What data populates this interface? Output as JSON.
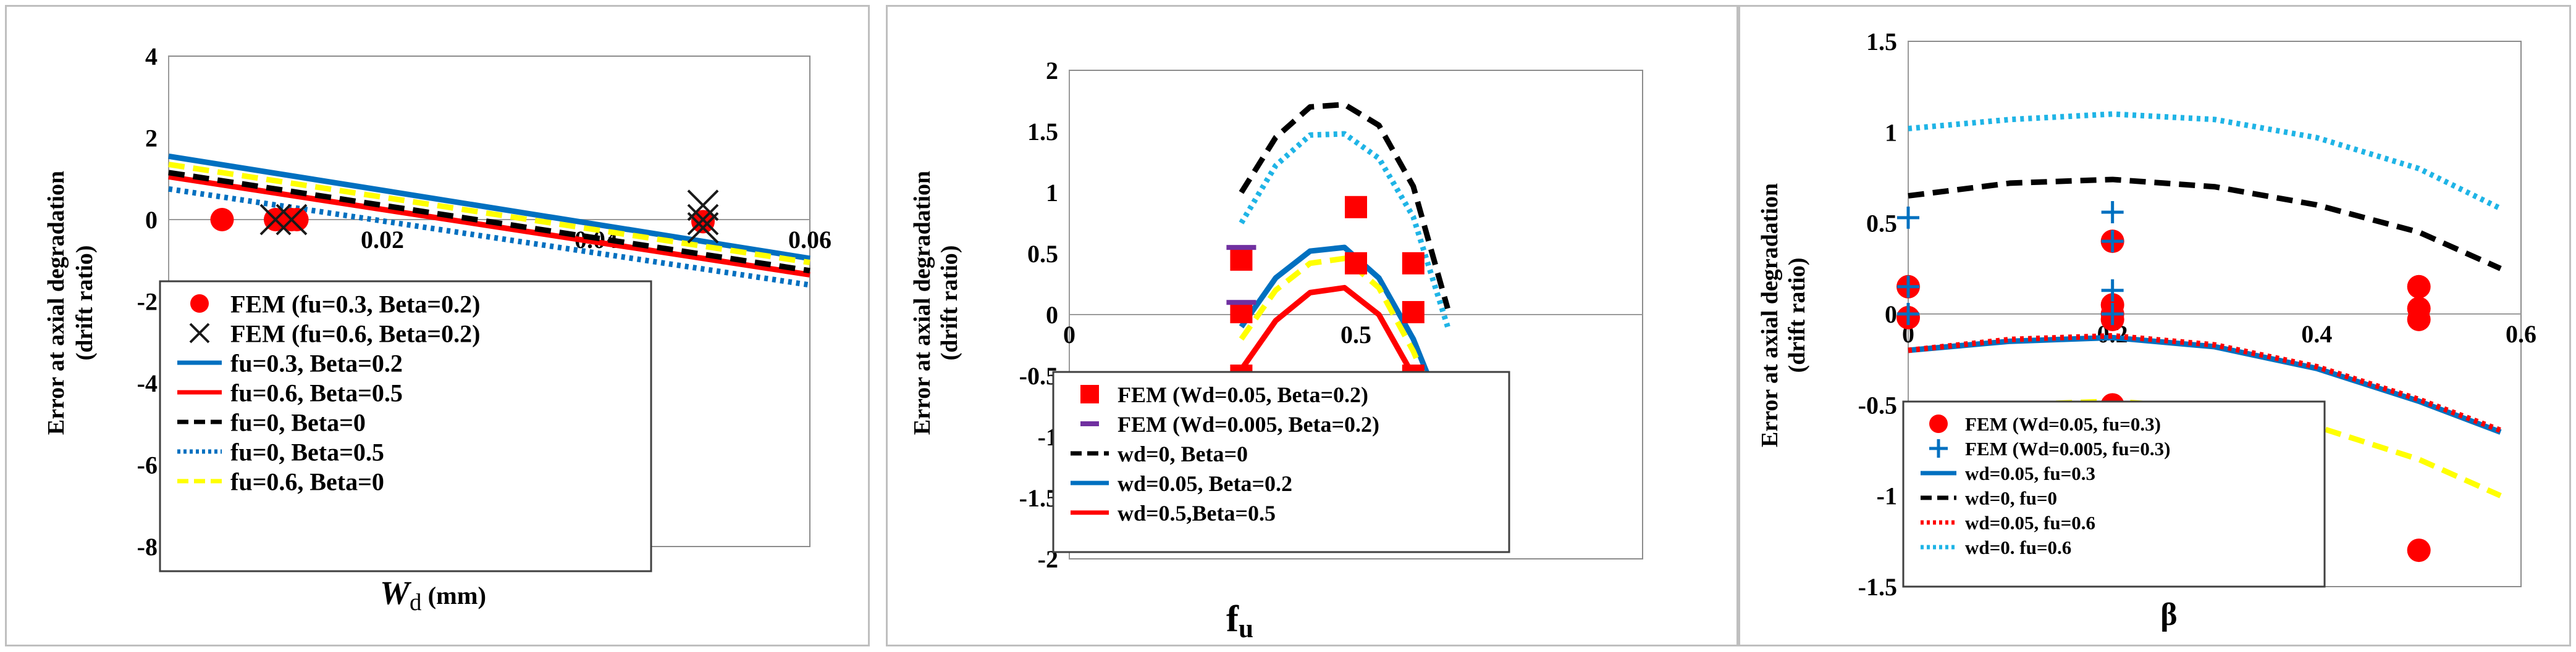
{
  "chart_data": [
    {
      "type": "line",
      "title": "",
      "xlabel": "W",
      "xlabel_sub": "d",
      "xlabel_unit": " (mm)",
      "ylabel": [
        "Error at axial degradation",
        "(drift ratio)"
      ],
      "xlim": [
        0,
        0.06
      ],
      "ylim": [
        -8,
        4
      ],
      "xticks": [
        "0.02",
        "0.04",
        "0.06"
      ],
      "yticks": [
        "4",
        "2",
        "0",
        "-2",
        "-4",
        "-6",
        "-8"
      ],
      "grid": false,
      "legend_position": "lower-left",
      "series": [
        {
          "name": "FEM (fu=0.3, Beta=0.2)",
          "kind": "scatter",
          "marker": "circle",
          "color": "#ff0000",
          "x": [
            0.005,
            0.01,
            0.0115,
            0.012,
            0.05
          ],
          "y": [
            0,
            0,
            0,
            0,
            -0.05
          ]
        },
        {
          "name": "FEM (fu=0.6, Beta=0.2)",
          "kind": "scatter",
          "marker": "x",
          "color": "#1a1a1a",
          "x": [
            0.01,
            0.0115,
            0.05,
            0.05,
            0.05
          ],
          "y": [
            0,
            0,
            0.35,
            0,
            -0.2
          ]
        },
        {
          "name": "fu=0.3, Beta=0.2",
          "kind": "line",
          "dash": "solid",
          "color": "#0070c0",
          "x": [
            0,
            0.06
          ],
          "y": [
            1.55,
            -0.95
          ]
        },
        {
          "name": "fu=0.6, Beta=0.5",
          "kind": "line",
          "dash": "solid",
          "color": "#ff0000",
          "x": [
            0,
            0.06
          ],
          "y": [
            1.05,
            -1.35
          ]
        },
        {
          "name": "fu=0, Beta=0",
          "kind": "line",
          "dash": "dashed",
          "color": "#000000",
          "x": [
            0,
            0.06
          ],
          "y": [
            1.15,
            -1.25
          ]
        },
        {
          "name": "fu=0, Beta=0.5",
          "kind": "line",
          "dash": "dotted",
          "color": "#0070c0",
          "x": [
            0,
            0.06
          ],
          "y": [
            0.75,
            -1.6
          ]
        },
        {
          "name": "fu=0.6, Beta=0",
          "kind": "line",
          "dash": "dashed",
          "color": "#ffff00",
          "x": [
            0,
            0.06
          ],
          "y": [
            1.35,
            -1.05
          ]
        }
      ]
    },
    {
      "type": "line",
      "title": "",
      "xlabel": "f",
      "xlabel_sub": "u",
      "xlabel_unit": "",
      "ylabel": [
        "Error at axial degradation",
        "(drift ratio)"
      ],
      "xlim": [
        0,
        1.0
      ],
      "ylim": [
        -2,
        2
      ],
      "xticks": [
        "0",
        "0.5"
      ],
      "yticks": [
        "2",
        "1.5",
        "1",
        "0.5",
        "0",
        "-0.5",
        "-1",
        "-1.5",
        "-2"
      ],
      "grid": false,
      "legend_position": "lower-left",
      "series": [
        {
          "name": "FEM (Wd=0.05, Beta=0.2)",
          "kind": "scatter",
          "marker": "square",
          "color": "#ff0000",
          "x": [
            0.3,
            0.3,
            0.3,
            0.5,
            0.5,
            0.6,
            0.6,
            0.6
          ],
          "y": [
            0.45,
            0.02,
            -0.5,
            0.88,
            0.42,
            0.42,
            0.02,
            -0.5
          ]
        },
        {
          "name": "FEM (Wd=0.005, Beta=0.2)",
          "kind": "scatter",
          "marker": "dash",
          "color": "#7030a0",
          "x": [
            0.3,
            0.3
          ],
          "y": [
            0.55,
            0.1
          ]
        },
        {
          "name": "wd=0, Beta=0",
          "kind": "line",
          "dash": "dashed",
          "color": "#000000",
          "x": [
            0.3,
            0.36,
            0.42,
            0.48,
            0.54,
            0.6,
            0.66
          ],
          "y": [
            1.0,
            1.45,
            1.7,
            1.72,
            1.55,
            1.05,
            0.05
          ]
        },
        {
          "name": "",
          "kind": "line",
          "dash": "dotted",
          "color": "#1fb4e6",
          "x": [
            0.3,
            0.36,
            0.42,
            0.48,
            0.54,
            0.6,
            0.66
          ],
          "y": [
            0.75,
            1.22,
            1.47,
            1.48,
            1.28,
            0.8,
            -0.1
          ]
        },
        {
          "name": "wd=0.05, Beta=0.2",
          "kind": "line",
          "dash": "solid",
          "color": "#0070c0",
          "x": [
            0.3,
            0.36,
            0.42,
            0.48,
            0.54,
            0.6,
            0.66,
            0.68
          ],
          "y": [
            -0.1,
            0.3,
            0.52,
            0.55,
            0.3,
            -0.2,
            -0.9,
            -1.1
          ]
        },
        {
          "name": "",
          "kind": "line",
          "dash": "dashed",
          "color": "#ffff00",
          "x": [
            0.3,
            0.36,
            0.42,
            0.48,
            0.54,
            0.6,
            0.66,
            0.68
          ],
          "y": [
            -0.2,
            0.2,
            0.42,
            0.46,
            0.22,
            -0.3,
            -0.95,
            -1.18
          ]
        },
        {
          "name": "wd=0.5,Beta=0.5",
          "kind": "line",
          "dash": "solid",
          "color": "#ff0000",
          "x": [
            0.3,
            0.36,
            0.42,
            0.48,
            0.54,
            0.6,
            0.66,
            0.68
          ],
          "y": [
            -0.45,
            -0.05,
            0.18,
            0.22,
            0.0,
            -0.5,
            -1.2,
            -1.45
          ]
        }
      ]
    },
    {
      "type": "line",
      "title": "",
      "xlabel": "β",
      "xlabel_sub": "",
      "xlabel_unit": "",
      "ylabel": [
        "Error at axial degradation",
        "(drift ratio)"
      ],
      "xlim": [
        0,
        0.6
      ],
      "ylim": [
        -1.5,
        1.5
      ],
      "xticks": [
        "0",
        "0.2",
        "0.4",
        "0.6"
      ],
      "yticks": [
        "1.5",
        "1",
        "0.5",
        "0",
        "-0.5",
        "-1",
        "-1.5"
      ],
      "grid": false,
      "legend_position": "lower-left",
      "series": [
        {
          "name": "FEM (Wd=0.05, fu=0.3)",
          "kind": "scatter",
          "marker": "circle",
          "color": "#ff0000",
          "x": [
            0,
            0,
            0.2,
            0.2,
            0.2,
            0.2,
            0.2,
            0.5,
            0.5,
            0.5,
            0.5
          ],
          "y": [
            0.15,
            -0.02,
            0.4,
            0.05,
            -0.03,
            -0.5,
            0.0,
            0.15,
            0.03,
            -0.03,
            -1.3
          ]
        },
        {
          "name": "FEM (Wd=0.005, fu=0.3)",
          "kind": "scatter",
          "marker": "plus",
          "color": "#0070c0",
          "x": [
            0,
            0,
            0,
            0.2,
            0.2,
            0.2,
            0.2
          ],
          "y": [
            0.53,
            0.15,
            0.0,
            0.56,
            0.4,
            0.13,
            0.0
          ]
        },
        {
          "name": "wd=0.05, fu=0.3",
          "kind": "line",
          "dash": "solid",
          "color": "#0070c0",
          "x": [
            0,
            0.1,
            0.2,
            0.3,
            0.4,
            0.5,
            0.58
          ],
          "y": [
            -0.2,
            -0.15,
            -0.13,
            -0.18,
            -0.3,
            -0.48,
            -0.65
          ]
        },
        {
          "name": "wd=0, fu=0",
          "kind": "line",
          "dash": "dashed",
          "color": "#000000",
          "x": [
            0,
            0.1,
            0.2,
            0.3,
            0.4,
            0.5,
            0.58
          ],
          "y": [
            0.65,
            0.72,
            0.74,
            0.7,
            0.6,
            0.45,
            0.25
          ]
        },
        {
          "name": "wd=0.05, fu=0.6",
          "kind": "line",
          "dash": "dotted",
          "color": "#ff0000",
          "x": [
            0,
            0.1,
            0.2,
            0.3,
            0.4,
            0.5,
            0.58
          ],
          "y": [
            -0.2,
            -0.14,
            -0.12,
            -0.17,
            -0.29,
            -0.47,
            -0.64
          ]
        },
        {
          "name": "wd=0. fu=0.6",
          "kind": "line",
          "dash": "dotted",
          "color": "#1fb4e6",
          "x": [
            0,
            0.1,
            0.2,
            0.3,
            0.4,
            0.5,
            0.58
          ],
          "y": [
            1.02,
            1.07,
            1.1,
            1.07,
            0.97,
            0.8,
            0.58
          ]
        },
        {
          "name": "",
          "kind": "line",
          "dash": "dashed",
          "color": "#ffff00",
          "x": [
            0,
            0.1,
            0.2,
            0.3,
            0.4,
            0.5,
            0.58
          ],
          "y": [
            -0.55,
            -0.5,
            -0.48,
            -0.52,
            -0.62,
            -0.8,
            -1.0
          ]
        }
      ]
    }
  ]
}
